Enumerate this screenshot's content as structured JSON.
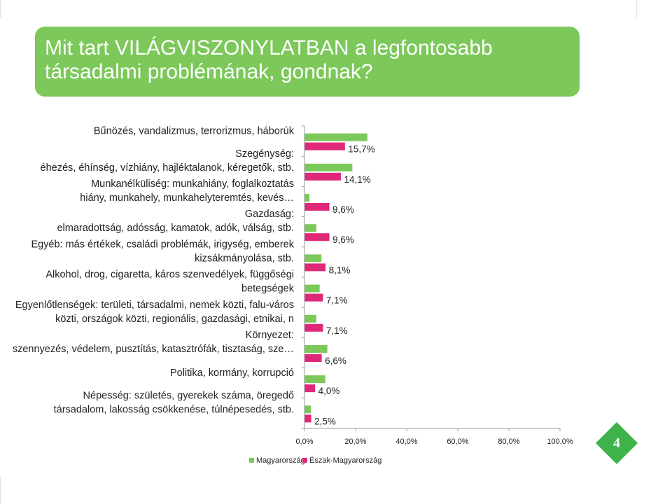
{
  "title_lines": [
    "Mit tart VILÁGVISZONYLATBAN a legfontosabb",
    "társadalmi problémának, gondnak?"
  ],
  "colors": {
    "accent": "#7cc85a",
    "series_hu": "#7cc85a",
    "series_nk": "#e0287a",
    "badge": "#3fb24a"
  },
  "page_number": "4",
  "chart_data": {
    "type": "bar",
    "orientation": "horizontal",
    "categories": [
      [
        "Bűnözés, vandalizmus, terrorizmus, háborúk"
      ],
      [
        "Szegénység:",
        "éhezés, éhínség, vízhiány, hajléktalanok, kéregetők, stb."
      ],
      [
        "Munkanélküliség: munkahiány, foglalkoztatás",
        "hiány, munkahely, munkahelyteremtés, kevés…"
      ],
      [
        "Gazdaság:",
        "elmaradottság, adósság, kamatok, adók, válság, stb."
      ],
      [
        "Egyéb: más értékek, családi problémák, irigység, emberek",
        "kizsákmányolása, stb."
      ],
      [
        "Alkohol, drog, cigaretta, káros szenvedélyek, függőségi",
        "betegségek"
      ],
      [
        "Egyenlőtlenségek: területi, társadalmi, nemek közti, falu-város",
        "közti, országok közti, regionális, gazdasági, etnikai, n"
      ],
      [
        "Környezet:",
        "szennyezés, védelem, pusztítás, katasztrófák, tisztaság, sze…"
      ],
      [
        "Politika, kormány, korrupció"
      ],
      [
        "Népesség: születés, gyerekek száma, öregedő",
        "társadalom, lakosság csökkenése, túlnépesedés, stb."
      ]
    ],
    "series": [
      {
        "name": "Magyarország",
        "values": [
          24.5,
          18.6,
          1.8,
          4.5,
          6.5,
          5.8,
          4.5,
          8.8,
          8.0,
          2.4
        ]
      },
      {
        "name": "Észak-Magyarország",
        "values": [
          15.7,
          14.1,
          9.6,
          9.6,
          8.1,
          7.1,
          7.1,
          6.6,
          4.0,
          2.5
        ]
      }
    ],
    "value_labels": [
      "15,7%",
      "14,1%",
      "9,6%",
      "9,6%",
      "8,1%",
      "7,1%",
      "7,1%",
      "6,6%",
      "4,0%",
      "2,5%"
    ],
    "x_ticks": [
      "0,0%",
      "20,0%",
      "40,0%",
      "60,0%",
      "80,0%",
      "100,0%"
    ],
    "xlim": [
      0,
      100
    ],
    "legend_position": "bottom"
  }
}
